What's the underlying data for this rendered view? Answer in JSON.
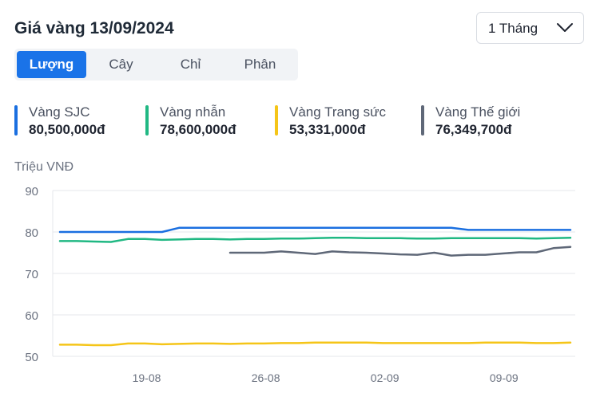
{
  "header": {
    "title": "Giá vàng 13/09/2024",
    "range_select": "1 Tháng"
  },
  "unit_tabs": [
    {
      "label": "Lượng",
      "active": true
    },
    {
      "label": "Cây",
      "active": false
    },
    {
      "label": "Chỉ",
      "active": false
    },
    {
      "label": "Phân",
      "active": false
    }
  ],
  "legend": [
    {
      "name": "Vàng SJC",
      "value": "80,500,000đ",
      "color": "#1a6fe0"
    },
    {
      "name": "Vàng nhẫn",
      "value": "78,600,000đ",
      "color": "#20b883"
    },
    {
      "name": "Vàng Trang sức",
      "value": "53,331,000đ",
      "color": "#f5c518"
    },
    {
      "name": "Vàng Thế giới",
      "value": "76,349,700đ",
      "color": "#5f6878"
    }
  ],
  "chart_data": {
    "type": "line",
    "title": "Giá vàng 13/09/2024",
    "ylabel": "Triệu VNĐ",
    "xlabel": "",
    "ylim": [
      50,
      90
    ],
    "yticks": [
      90,
      80,
      70,
      60,
      50
    ],
    "x_count": 31,
    "x_tick_labels": [
      {
        "label": "19-08",
        "index": 5
      },
      {
        "label": "26-08",
        "index": 12
      },
      {
        "label": "02-09",
        "index": 19
      },
      {
        "label": "09-09",
        "index": 26
      }
    ],
    "grid": true,
    "series": [
      {
        "name": "Vàng SJC",
        "color": "#1a6fe0",
        "start_index": 0,
        "values": [
          80.0,
          80.0,
          80.0,
          80.0,
          80.0,
          80.0,
          80.0,
          81.0,
          81.0,
          81.0,
          81.0,
          81.0,
          81.0,
          81.0,
          81.0,
          81.0,
          81.0,
          81.0,
          81.0,
          81.0,
          81.0,
          81.0,
          81.0,
          81.0,
          80.5,
          80.5,
          80.5,
          80.5,
          80.5,
          80.5,
          80.5
        ]
      },
      {
        "name": "Vàng nhẫn",
        "color": "#20b883",
        "start_index": 0,
        "values": [
          77.8,
          77.8,
          77.7,
          77.6,
          78.3,
          78.3,
          78.1,
          78.2,
          78.3,
          78.3,
          78.2,
          78.3,
          78.3,
          78.4,
          78.4,
          78.5,
          78.6,
          78.6,
          78.5,
          78.5,
          78.5,
          78.4,
          78.4,
          78.5,
          78.5,
          78.5,
          78.5,
          78.5,
          78.4,
          78.5,
          78.6
        ]
      },
      {
        "name": "Vàng Trang sức",
        "color": "#f5c518",
        "start_index": 0,
        "values": [
          52.8,
          52.8,
          52.7,
          52.7,
          53.1,
          53.1,
          52.9,
          53.0,
          53.1,
          53.1,
          53.0,
          53.1,
          53.1,
          53.2,
          53.2,
          53.3,
          53.3,
          53.3,
          53.3,
          53.2,
          53.2,
          53.2,
          53.2,
          53.2,
          53.2,
          53.3,
          53.3,
          53.3,
          53.2,
          53.2,
          53.3
        ]
      },
      {
        "name": "Vàng Thế giới",
        "color": "#5f6878",
        "start_index": 10,
        "values": [
          75.0,
          75.0,
          75.0,
          75.3,
          75.0,
          74.7,
          75.3,
          75.1,
          75.0,
          74.8,
          74.6,
          74.5,
          75.0,
          74.3,
          74.5,
          74.5,
          74.8,
          75.1,
          75.1,
          76.1,
          76.4
        ]
      }
    ]
  }
}
